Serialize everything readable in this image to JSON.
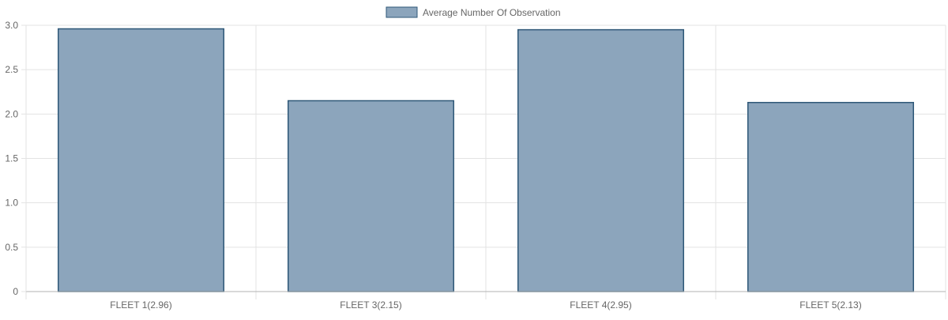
{
  "chart_data": {
    "type": "bar",
    "title": "",
    "xlabel": "",
    "ylabel": "",
    "categories": [
      "FLEET 1(2.96)",
      "FLEET 3(2.15)",
      "FLEET 4(2.95)",
      "FLEET 5(2.13)"
    ],
    "series": [
      {
        "name": "Average Number Of Observation",
        "values": [
          2.96,
          2.15,
          2.95,
          2.13
        ]
      }
    ],
    "ylim": [
      0,
      3.0
    ],
    "yticks": [
      "0",
      "0.5",
      "1.0",
      "1.5",
      "2.0",
      "2.5",
      "3.0"
    ],
    "grid": true,
    "legend_position": "top-center",
    "colors": {
      "bar_fill": "#8ca5bc",
      "bar_stroke": "#2f5878",
      "grid": "#e3e3e3",
      "axis": "#b3b3b3",
      "text": "#666666"
    }
  }
}
